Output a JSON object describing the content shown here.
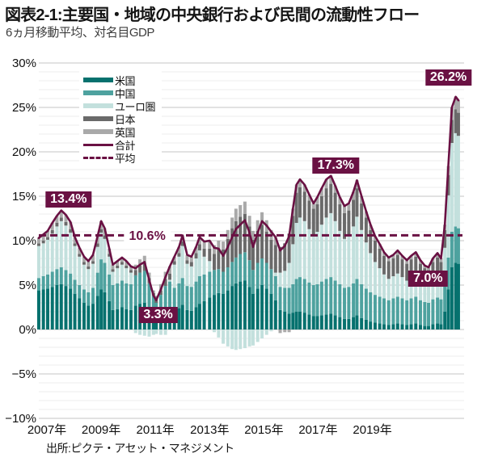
{
  "chart_data": {
    "type": "stacked_bar_with_line",
    "title": "図表2-1:主要国・地域の中央銀行および民間の流動性フロー",
    "subtitle": "6ヵ月移動平均、対名目GDP",
    "source": "出所:ピクテ・アセット・マネジメント",
    "unit": "%",
    "grid": true,
    "y_axis": {
      "min": -10,
      "max": 30,
      "tick_step": 5,
      "ticks": [
        {
          "value": 30,
          "label": "30%"
        },
        {
          "value": 25,
          "label": "25%"
        },
        {
          "value": 20,
          "label": "20%"
        },
        {
          "value": 15,
          "label": "15%"
        },
        {
          "value": 10,
          "label": "10%"
        },
        {
          "value": 5,
          "label": "5%"
        },
        {
          "value": 0,
          "label": "0%"
        },
        {
          "value": -5,
          "label": "−5%"
        },
        {
          "value": -10,
          "label": "−10%"
        }
      ]
    },
    "x_axis": {
      "ticks": [
        {
          "year": 2007,
          "label": "2007年"
        },
        {
          "year": 2009,
          "label": "2009年"
        },
        {
          "year": 2011,
          "label": "2011年"
        },
        {
          "year": 2013,
          "label": "2013年"
        },
        {
          "year": 2015,
          "label": "2015年"
        },
        {
          "year": 2017,
          "label": "2017年"
        },
        {
          "year": 2019,
          "label": "2019年"
        }
      ]
    },
    "series": [
      {
        "key": "us",
        "name": "米国",
        "color": "#06716E"
      },
      {
        "key": "cn",
        "name": "中国",
        "color": "#4EA29F"
      },
      {
        "key": "eu",
        "name": "ユーロ圏",
        "color": "#C3E0DD"
      },
      {
        "key": "jp",
        "name": "日本",
        "color": "#6A6A6A"
      },
      {
        "key": "uk",
        "name": "英国",
        "color": "#A9A9A9"
      }
    ],
    "total_line": {
      "name": "合計",
      "color": "#6A1143"
    },
    "average_line": {
      "name": "平均",
      "value": 10.6,
      "color": "#6A1143",
      "style": "dashed"
    },
    "samples_format": [
      "year",
      "米国",
      "中国",
      "ユーロ圏",
      "日本",
      "英国"
    ],
    "samples": [
      [
        2006.7,
        4.4,
        1.4,
        3.6,
        0.3,
        0.6
      ],
      [
        2006.87,
        4.5,
        1.5,
        3.7,
        0.3,
        0.7
      ],
      [
        2007.03,
        4.6,
        1.6,
        3.9,
        0.3,
        0.7
      ],
      [
        2007.2,
        4.8,
        1.7,
        4.3,
        0.4,
        0.8
      ],
      [
        2007.37,
        5.0,
        1.8,
        4.8,
        0.4,
        0.8
      ],
      [
        2007.53,
        5.1,
        1.9,
        5.2,
        0.4,
        0.8
      ],
      [
        2007.7,
        4.9,
        1.8,
        5.0,
        0.4,
        0.8
      ],
      [
        2007.87,
        4.6,
        1.7,
        4.6,
        0.4,
        0.8
      ],
      [
        2008.03,
        4.0,
        1.6,
        3.8,
        0.3,
        0.7
      ],
      [
        2008.2,
        3.5,
        1.5,
        3.2,
        0.3,
        0.7
      ],
      [
        2008.37,
        3.0,
        1.5,
        2.8,
        0.3,
        0.6
      ],
      [
        2008.53,
        2.7,
        1.5,
        2.6,
        0.3,
        0.6
      ],
      [
        2008.7,
        2.9,
        1.8,
        2.7,
        0.3,
        0.7
      ],
      [
        2008.87,
        3.8,
        2.6,
        2.9,
        0.4,
        0.8
      ],
      [
        2009.0,
        4.5,
        3.4,
        3.0,
        0.4,
        0.9
      ],
      [
        2009.13,
        4.2,
        3.3,
        2.7,
        0.4,
        0.8
      ],
      [
        2009.3,
        3.2,
        3.0,
        2.0,
        0.3,
        0.6
      ],
      [
        2009.43,
        2.2,
        2.8,
        1.5,
        0.3,
        0.5
      ],
      [
        2009.6,
        2.3,
        2.9,
        1.7,
        0.3,
        0.5
      ],
      [
        2009.77,
        2.5,
        3.0,
        1.8,
        0.3,
        0.5
      ],
      [
        2009.93,
        2.3,
        2.9,
        1.7,
        0.3,
        0.5
      ],
      [
        2010.1,
        2.2,
        2.9,
        1.3,
        0.3,
        0.4
      ],
      [
        2010.27,
        2.7,
        3.4,
        -0.4,
        0.6,
        0.6
      ],
      [
        2010.43,
        2.9,
        3.5,
        -0.6,
        0.8,
        0.7
      ],
      [
        2010.6,
        3.0,
        3.6,
        -0.7,
        0.9,
        0.8
      ],
      [
        2010.77,
        2.3,
        2.9,
        -0.8,
        0.6,
        0.6
      ],
      [
        2010.93,
        1.6,
        2.2,
        -0.6,
        0.3,
        0.3
      ],
      [
        2011.03,
        1.1,
        1.9,
        -0.5,
        0.4,
        0.4
      ],
      [
        2011.2,
        1.6,
        2.3,
        -0.6,
        0.5,
        0.7
      ],
      [
        2011.37,
        2.2,
        2.7,
        -0.6,
        0.8,
        0.8
      ],
      [
        2011.53,
        2.5,
        2.9,
        0.2,
        0.7,
        0.8
      ],
      [
        2011.7,
        2.1,
        2.6,
        2.6,
        0.4,
        0.5
      ],
      [
        2011.87,
        2.4,
        2.8,
        3.0,
        0.4,
        0.7
      ],
      [
        2012.0,
        2.8,
        3.0,
        3.6,
        0.5,
        0.7
      ],
      [
        2012.17,
        2.2,
        2.7,
        2.5,
        0.4,
        0.6
      ],
      [
        2012.33,
        2.1,
        2.7,
        2.3,
        0.5,
        0.6
      ],
      [
        2012.5,
        2.5,
        2.9,
        2.6,
        0.6,
        0.7
      ],
      [
        2012.63,
        2.9,
        3.1,
        2.9,
        0.7,
        0.8
      ],
      [
        2012.8,
        3.2,
        3.0,
        2.0,
        0.9,
        0.8
      ],
      [
        2013.0,
        3.6,
        2.9,
        1.2,
        1.4,
        0.9
      ],
      [
        2013.17,
        3.9,
        2.8,
        -0.3,
        1.8,
        1.0
      ],
      [
        2013.33,
        4.1,
        2.7,
        -0.9,
        2.2,
        1.0
      ],
      [
        2013.5,
        4.0,
        2.5,
        -1.6,
        2.5,
        0.9
      ],
      [
        2013.67,
        4.4,
        2.6,
        -1.9,
        3.2,
        1.0
      ],
      [
        2013.83,
        4.9,
        2.7,
        -2.2,
        3.8,
        1.2
      ],
      [
        2013.97,
        5.2,
        2.9,
        -2.3,
        4.1,
        1.4
      ],
      [
        2014.13,
        5.4,
        3.1,
        -2.2,
        4.2,
        1.3
      ],
      [
        2014.3,
        5.5,
        3.2,
        -2.1,
        4.3,
        1.4
      ],
      [
        2014.47,
        4.8,
        3.0,
        -1.9,
        3.8,
        1.2
      ],
      [
        2014.6,
        4.0,
        2.7,
        -1.8,
        3.4,
        1.0
      ],
      [
        2014.77,
        4.6,
        2.9,
        -1.4,
        3.6,
        1.2
      ],
      [
        2014.93,
        5.0,
        3.0,
        -1.0,
        3.8,
        1.4
      ],
      [
        2015.1,
        4.6,
        2.9,
        -0.6,
        3.5,
        1.3
      ],
      [
        2015.27,
        4.0,
        2.8,
        -0.2,
        3.3,
        1.1
      ],
      [
        2015.43,
        3.3,
        2.7,
        0.4,
        3.1,
        0.9
      ],
      [
        2015.6,
        2.2,
        2.6,
        1.6,
        2.9,
        -0.4
      ],
      [
        2015.77,
        2.0,
        2.7,
        1.9,
        3.1,
        -0.3
      ],
      [
        2015.93,
        1.8,
        2.9,
        2.8,
        3.3,
        -0.3
      ],
      [
        2016.07,
        1.9,
        3.2,
        4.5,
        3.2,
        0.8
      ],
      [
        2016.2,
        2.0,
        3.7,
        6.3,
        3.4,
        0.9
      ],
      [
        2016.33,
        2.0,
        3.9,
        6.7,
        3.4,
        0.9
      ],
      [
        2016.5,
        1.9,
        3.8,
        6.5,
        3.3,
        0.8
      ],
      [
        2016.67,
        1.7,
        3.6,
        6.0,
        3.2,
        0.7
      ],
      [
        2016.83,
        1.5,
        3.5,
        5.5,
        3.1,
        0.6
      ],
      [
        2016.97,
        1.5,
        3.6,
        5.9,
        3.1,
        0.8
      ],
      [
        2017.13,
        1.6,
        3.8,
        6.4,
        3.2,
        0.9
      ],
      [
        2017.3,
        1.7,
        4.0,
        6.9,
        3.3,
        1.0
      ],
      [
        2017.47,
        1.8,
        4.1,
        7.2,
        3.3,
        0.9
      ],
      [
        2017.63,
        1.6,
        3.9,
        6.7,
        3.2,
        0.8
      ],
      [
        2017.8,
        1.4,
        3.7,
        6.0,
        3.0,
        0.8
      ],
      [
        2017.97,
        1.2,
        3.5,
        5.5,
        2.9,
        0.8
      ],
      [
        2018.13,
        1.2,
        3.6,
        5.7,
        2.9,
        0.8
      ],
      [
        2018.3,
        1.4,
        3.8,
        6.4,
        3.0,
        0.9
      ],
      [
        2018.43,
        1.6,
        4.1,
        7.0,
        3.2,
        0.9
      ],
      [
        2018.6,
        1.3,
        3.8,
        6.1,
        3.0,
        0.8
      ],
      [
        2018.77,
        1.1,
        3.5,
        5.2,
        2.8,
        0.7
      ],
      [
        2018.93,
        0.9,
        3.3,
        4.4,
        2.6,
        0.6
      ],
      [
        2019.1,
        0.8,
        3.1,
        3.7,
        2.4,
        0.5
      ],
      [
        2019.27,
        0.7,
        3.0,
        3.2,
        2.2,
        0.5
      ],
      [
        2019.43,
        0.6,
        2.9,
        2.7,
        2.1,
        0.4
      ],
      [
        2019.6,
        0.5,
        2.8,
        2.4,
        2.0,
        0.4
      ],
      [
        2019.77,
        0.6,
        2.9,
        2.5,
        2.0,
        0.4
      ],
      [
        2019.93,
        0.7,
        3.0,
        2.6,
        2.1,
        0.5
      ],
      [
        2020.1,
        0.6,
        2.9,
        2.4,
        2.0,
        0.4
      ],
      [
        2020.27,
        0.5,
        2.8,
        2.2,
        1.9,
        0.4
      ],
      [
        2020.43,
        0.6,
        2.9,
        2.4,
        2.0,
        0.4
      ],
      [
        2020.6,
        0.7,
        3.0,
        2.5,
        2.0,
        0.5
      ],
      [
        2020.77,
        0.5,
        2.8,
        2.2,
        1.9,
        0.4
      ],
      [
        2020.93,
        0.4,
        2.7,
        2.0,
        1.8,
        0.3
      ],
      [
        2021.07,
        0.4,
        2.6,
        1.9,
        1.8,
        0.3
      ],
      [
        2021.23,
        0.6,
        2.8,
        2.3,
        1.9,
        0.4
      ],
      [
        2021.4,
        0.7,
        2.9,
        2.6,
        1.9,
        0.5
      ],
      [
        2021.53,
        0.6,
        2.8,
        2.4,
        1.8,
        0.4
      ],
      [
        2021.67,
        2.0,
        3.2,
        4.0,
        2.0,
        0.6
      ],
      [
        2021.8,
        4.5,
        3.6,
        7.0,
        2.3,
        1.0
      ],
      [
        2021.93,
        7.0,
        4.0,
        10.0,
        2.6,
        1.4
      ],
      [
        2022.07,
        7.5,
        4.1,
        10.5,
        2.7,
        1.4
      ],
      [
        2022.17,
        7.4,
        4.0,
        10.4,
        2.6,
        1.4
      ]
    ],
    "annotations": [
      {
        "label": "13.4%",
        "value": 13.4,
        "style": "dark",
        "anchor": {
          "year": 2007.8,
          "pct": 14.6
        }
      },
      {
        "label": "10.6%",
        "value": 10.6,
        "style": "light",
        "anchor": {
          "year": 2010.7,
          "pct": 10.5
        }
      },
      {
        "label": "3.3%",
        "value": 3.3,
        "style": "dark",
        "anchor": {
          "year": 2011.1,
          "pct": 1.6
        }
      },
      {
        "label": "17.3%",
        "value": 17.3,
        "style": "dark",
        "anchor": {
          "year": 2017.65,
          "pct": 18.5
        }
      },
      {
        "label": "7.0%",
        "value": 7.0,
        "style": "dark",
        "anchor": {
          "year": 2021.05,
          "pct": 5.7
        }
      },
      {
        "label": "26.2%",
        "value": 26.2,
        "style": "dark",
        "anchor": {
          "year": 2021.8,
          "pct": 28.4
        }
      }
    ],
    "grid_colors": {
      "minor": "#ededed",
      "major": "#c4c4c4"
    }
  }
}
